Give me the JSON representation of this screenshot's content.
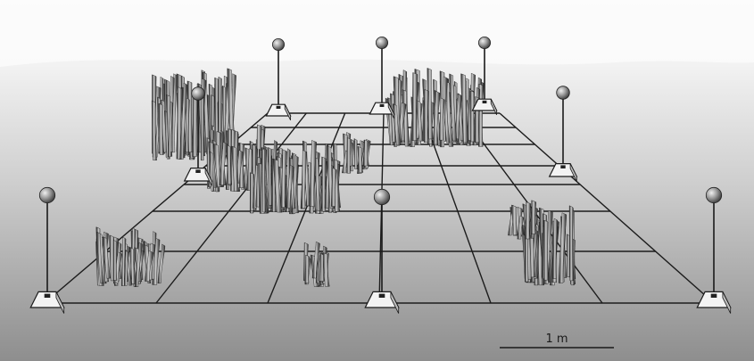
{
  "scene": {
    "colors": {
      "water_top": "#f7f7f7",
      "water_bottom": "#8a8a8a",
      "grid_line": "#1c1c1c",
      "marker_base": "#f2f2f2",
      "buoy": "#8c8c8c",
      "seagrass_dark": "#2b2b2b",
      "seagrass_light": "#c8c8c8"
    },
    "icons": [
      "buoy-marker-icon",
      "concrete-anchor-block-icon",
      "seagrass-clump-icon"
    ],
    "scale_bar": {
      "label": "1 m"
    }
  }
}
